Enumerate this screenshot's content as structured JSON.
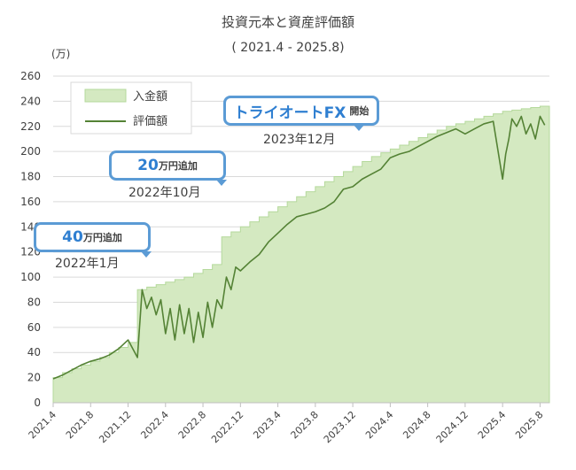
{
  "chart_data": {
    "type": "area+line",
    "title": "投資元本と資産評価額",
    "subtitle": "( 2021.4 - 2025.8)",
    "ylabel": "(万)",
    "ylim": [
      0,
      260
    ],
    "yticks": [
      0,
      20,
      40,
      60,
      80,
      100,
      120,
      140,
      160,
      180,
      200,
      220,
      240,
      260
    ],
    "xlim": [
      "2021-04",
      "2025-09"
    ],
    "xticks": [
      "2021.4",
      "2021.8",
      "2021.12",
      "2022.4",
      "2022.8",
      "2022.12",
      "2023.4",
      "2023.8",
      "2023.12",
      "2024.4",
      "2024.8",
      "2024.12",
      "2025.4",
      "2025.8"
    ],
    "grid": "horizontal",
    "legend": {
      "position": "top-left",
      "entries": [
        "入金額",
        "評価額"
      ]
    },
    "colors": {
      "deposit_fill": "#d4e9c1",
      "deposit_edge": "#b5d99c",
      "valuation_line": "#548235",
      "callout_border": "#5b9bd5",
      "callout_text": "#2f7fd1"
    },
    "series": [
      {
        "name": "入金額",
        "kind": "step-area",
        "x": [
          "2021-04",
          "2021-05",
          "2021-06",
          "2021-07",
          "2021-08",
          "2021-09",
          "2021-10",
          "2021-11",
          "2021-12",
          "2022-01",
          "2022-02",
          "2022-03",
          "2022-04",
          "2022-05",
          "2022-06",
          "2022-07",
          "2022-08",
          "2022-09",
          "2022-10",
          "2022-11",
          "2022-12",
          "2023-01",
          "2023-02",
          "2023-03",
          "2023-04",
          "2023-05",
          "2023-06",
          "2023-07",
          "2023-08",
          "2023-09",
          "2023-10",
          "2023-11",
          "2023-12",
          "2024-01",
          "2024-02",
          "2024-03",
          "2024-04",
          "2024-05",
          "2024-06",
          "2024-07",
          "2024-08",
          "2024-09",
          "2024-10",
          "2024-11",
          "2024-12",
          "2025-01",
          "2025-02",
          "2025-03",
          "2025-04",
          "2025-05",
          "2025-06",
          "2025-07",
          "2025-08"
        ],
        "y": [
          20,
          24,
          27,
          30,
          33,
          36,
          40,
          44,
          48,
          90,
          92,
          94,
          96,
          98,
          100,
          103,
          106,
          110,
          132,
          136,
          140,
          144,
          148,
          152,
          156,
          160,
          164,
          168,
          172,
          176,
          180,
          184,
          188,
          192,
          196,
          199,
          202,
          205,
          208,
          211,
          214,
          217,
          220,
          222,
          224,
          226,
          228,
          230,
          232,
          233,
          234,
          235,
          236
        ]
      },
      {
        "name": "評価額",
        "kind": "line",
        "x": [
          "2021-04",
          "2021-05",
          "2021-06",
          "2021-07",
          "2021-08",
          "2021-09",
          "2021-10",
          "2021-11",
          "2021-12",
          "2022-01",
          "2022-01",
          "2022-02",
          "2022-02",
          "2022-03",
          "2022-03",
          "2022-04",
          "2022-04",
          "2022-05",
          "2022-05",
          "2022-06",
          "2022-06",
          "2022-07",
          "2022-07",
          "2022-08",
          "2022-08",
          "2022-09",
          "2022-09",
          "2022-10",
          "2022-10",
          "2022-11",
          "2022-11",
          "2022-12",
          "2023-01",
          "2023-02",
          "2023-03",
          "2023-04",
          "2023-05",
          "2023-06",
          "2023-07",
          "2023-08",
          "2023-09",
          "2023-10",
          "2023-11",
          "2023-12",
          "2024-01",
          "2024-02",
          "2024-03",
          "2024-04",
          "2024-05",
          "2024-06",
          "2024-07",
          "2024-08",
          "2024-09",
          "2024-10",
          "2024-11",
          "2024-12",
          "2025-01",
          "2025-02",
          "2025-03",
          "2025-04",
          "2025-04",
          "2025-04",
          "2025-05",
          "2025-05",
          "2025-06",
          "2025-06",
          "2025-07",
          "2025-07",
          "2025-08",
          "2025-08"
        ],
        "y": [
          19,
          22,
          26,
          30,
          33,
          35,
          38,
          43,
          50,
          36,
          90,
          75,
          84,
          70,
          82,
          55,
          75,
          50,
          78,
          55,
          75,
          48,
          72,
          52,
          80,
          60,
          82,
          75,
          100,
          90,
          108,
          105,
          112,
          118,
          128,
          135,
          142,
          148,
          150,
          152,
          155,
          160,
          170,
          172,
          178,
          182,
          186,
          195,
          198,
          200,
          204,
          208,
          212,
          215,
          218,
          214,
          218,
          222,
          224,
          178,
          198,
          210,
          226,
          220,
          228,
          214,
          222,
          210,
          228,
          221
        ]
      }
    ],
    "annotations": [
      {
        "big": "40",
        "small": "万円追加",
        "date": "2022年1月"
      },
      {
        "big": "20",
        "small": "万円追加",
        "date": "2022年10月"
      },
      {
        "big": "トライオートFX",
        "small": "開始",
        "date": "2023年12月"
      }
    ]
  }
}
